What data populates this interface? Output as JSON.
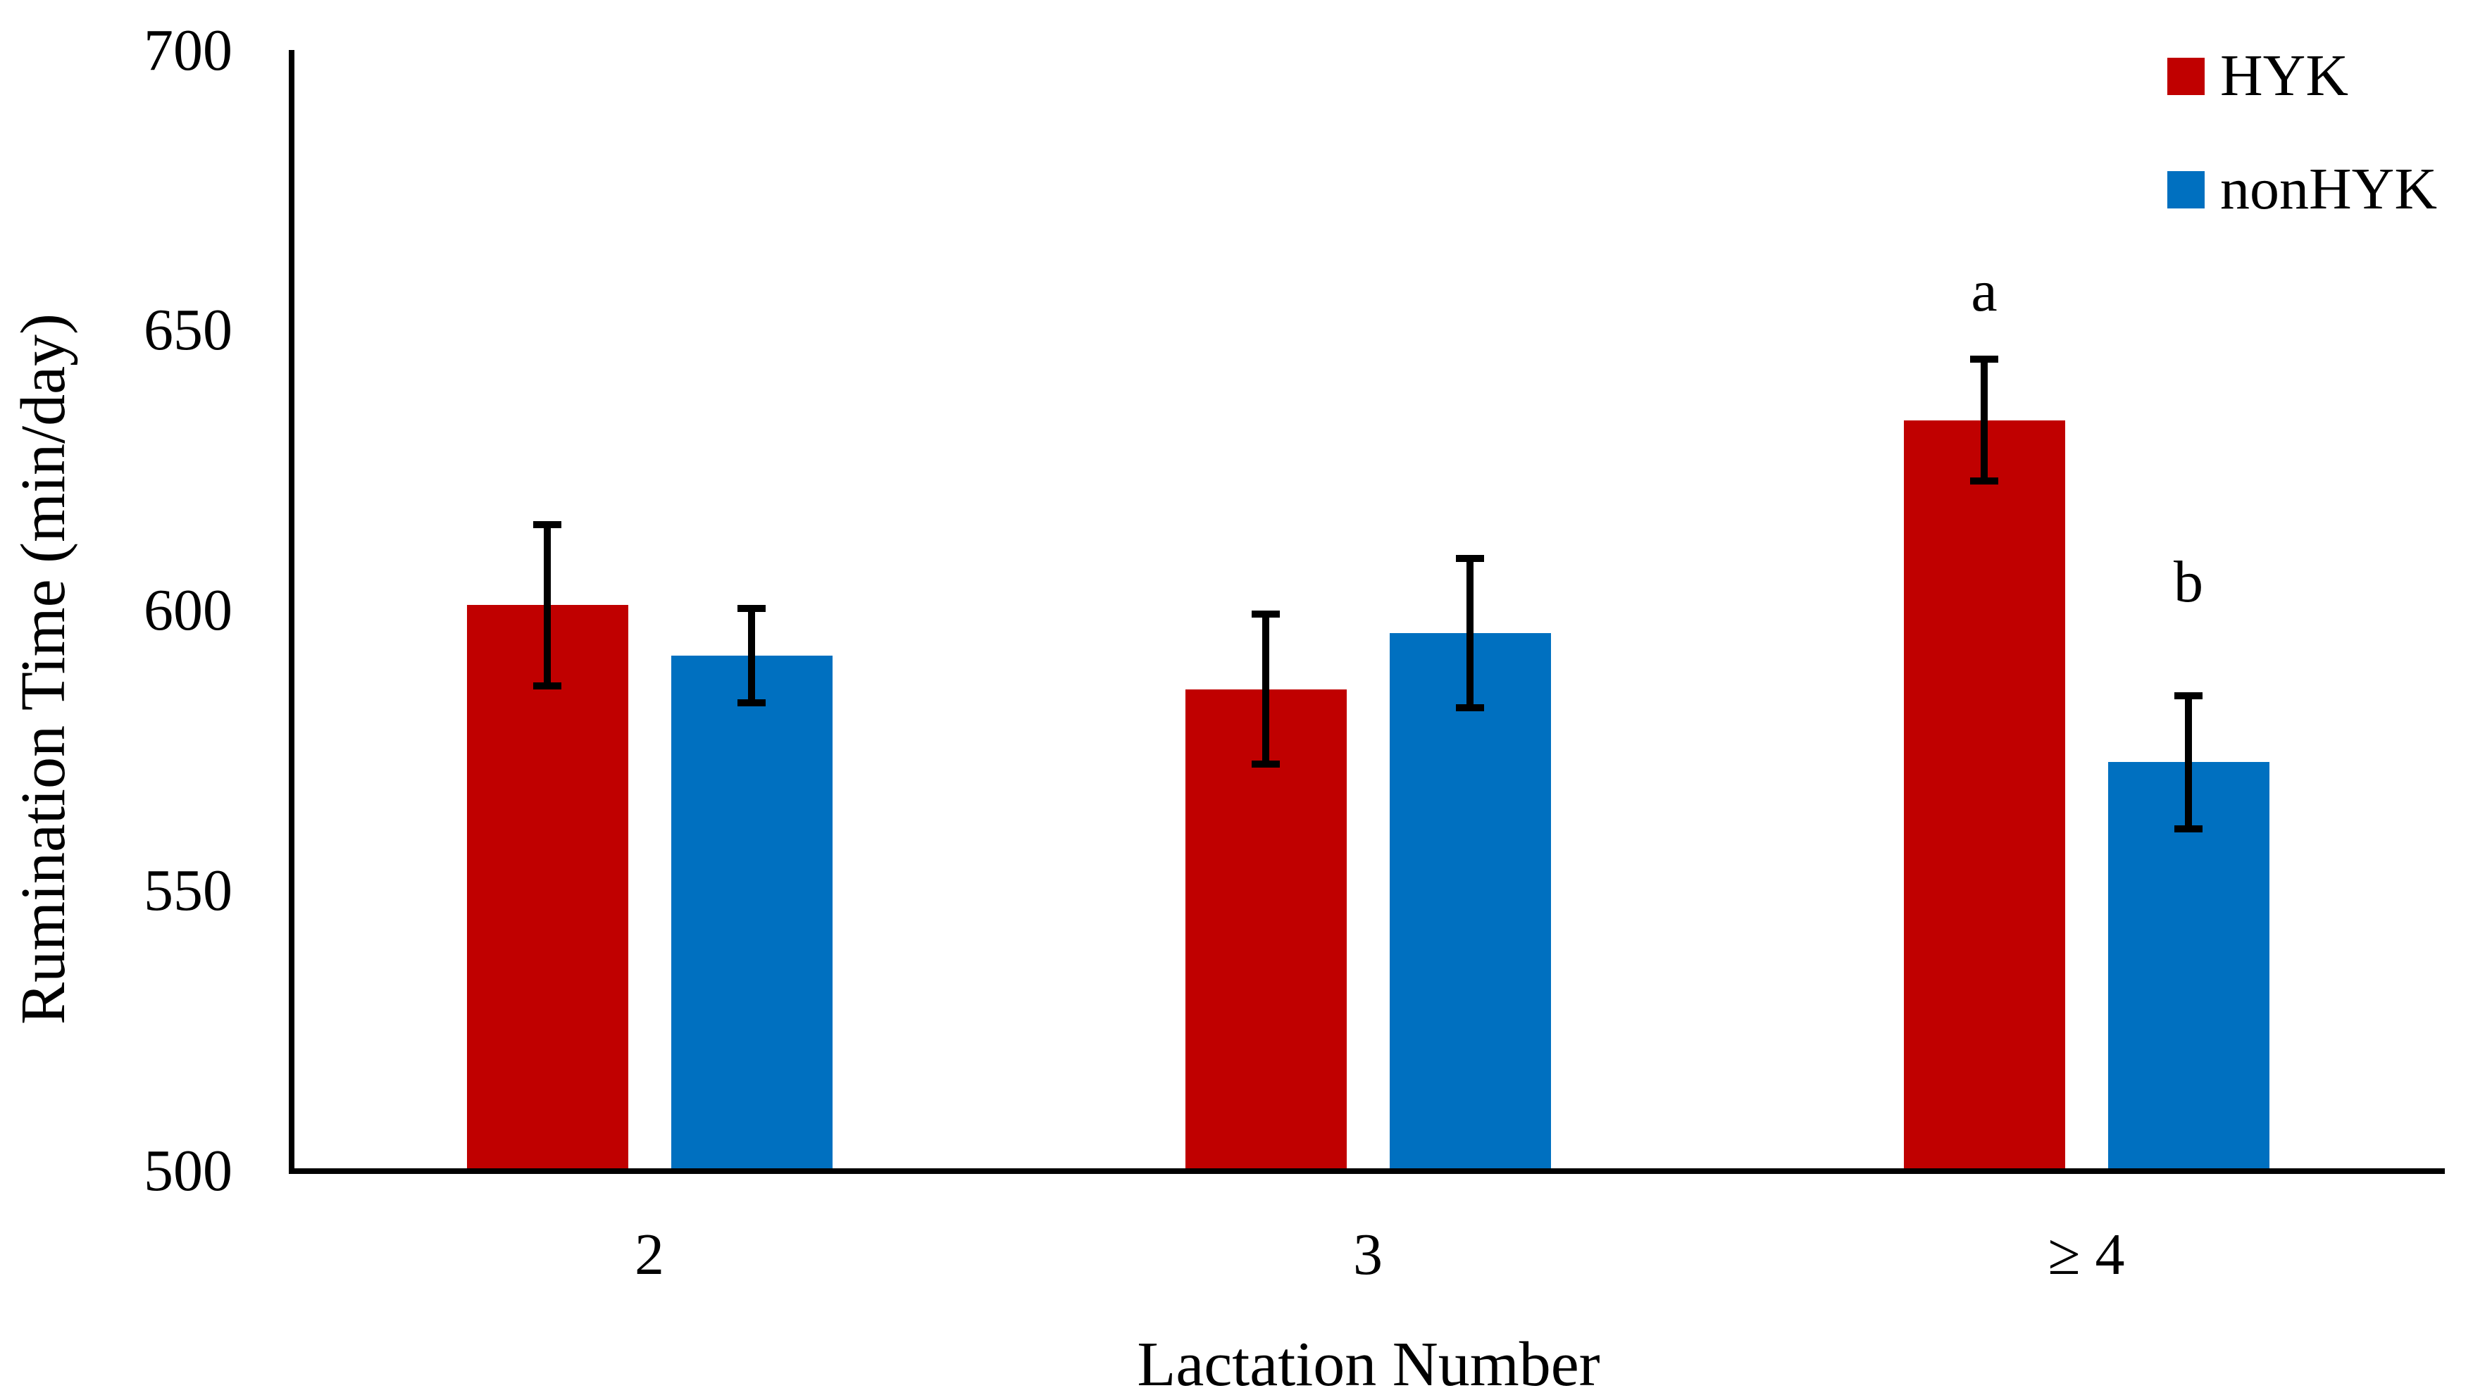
{
  "page": {
    "background": "#ffffff"
  },
  "chart_data": {
    "type": "bar",
    "title": "",
    "categories": [
      "2",
      "3",
      "≥ 4"
    ],
    "series": [
      {
        "name": "HYK",
        "color": "#C00000",
        "values": [
          601,
          586,
          634
        ],
        "error_bars": [
          15,
          14,
          11.5
        ]
      },
      {
        "name": "nonHYK",
        "color": "#0070C0",
        "values": [
          592,
          596,
          573
        ],
        "error_bars": [
          9,
          14,
          12.5
        ]
      }
    ],
    "annotations": [
      {
        "text": "a",
        "category": "≥ 4",
        "series": "HYK",
        "value": 657
      },
      {
        "text": "b",
        "category": "≥ 4",
        "series": "nonHYK",
        "value": 605
      }
    ],
    "xlabel": "Lactation Number",
    "ylabel": "Rumination Time (min/day)",
    "ylim": [
      500,
      700
    ],
    "yticks": [
      700,
      650,
      600,
      550,
      500
    ],
    "grid": false,
    "legend_position": "top-right",
    "axis_color": "#000000",
    "error_bar_color": "#000000"
  }
}
